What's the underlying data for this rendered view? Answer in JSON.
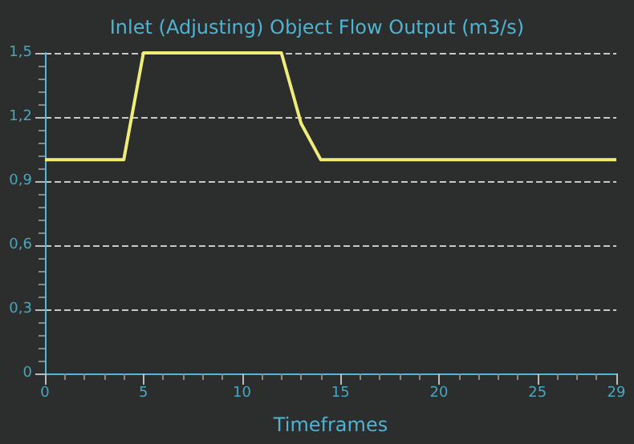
{
  "chart_data": {
    "type": "line",
    "title": "Inlet (Adjusting) Object Flow Output (m3/s)",
    "xlabel": "Timeframes",
    "x": [
      0,
      4,
      5,
      12,
      13,
      14,
      29
    ],
    "series": [
      {
        "color": "#f0ec7a",
        "values": [
          1,
          1,
          1.5,
          1.5,
          1.17,
          1,
          1
        ]
      }
    ],
    "xlim": [
      0,
      29
    ],
    "xticks": [
      0,
      5,
      10,
      15,
      20,
      25,
      29
    ],
    "ylim": [
      0,
      1.5
    ],
    "yticks": [
      0,
      {
        "value": 0.3,
        "label": "0,3"
      },
      {
        "value": 0.6,
        "label": "0,6"
      },
      {
        "value": 0.9,
        "label": "0,9"
      },
      {
        "value": 1.2,
        "label": "1,2"
      },
      {
        "value": 1.5,
        "label": "1,5"
      }
    ],
    "grid": "y",
    "marker": "none",
    "line_style": "solid"
  }
}
